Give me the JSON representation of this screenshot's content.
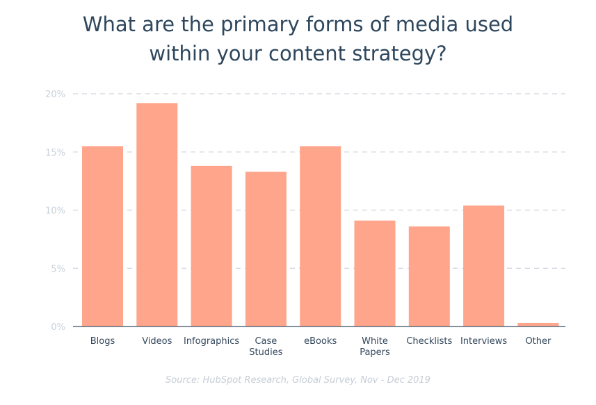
{
  "chart_data": {
    "type": "bar",
    "title_lines": [
      "What are the primary forms of media used",
      "within your content strategy?"
    ],
    "categories": [
      "Blogs",
      "Videos",
      "Infographics",
      "Case Studies",
      "eBooks",
      "White Papers",
      "Checklists",
      "Interviews",
      "Other"
    ],
    "category_lines": [
      [
        "Blogs"
      ],
      [
        "Videos"
      ],
      [
        "Infographics"
      ],
      [
        "Case",
        "Studies"
      ],
      [
        "eBooks"
      ],
      [
        "White",
        "Papers"
      ],
      [
        "Checklists"
      ],
      [
        "Interviews"
      ],
      [
        "Other"
      ]
    ],
    "values": [
      15.5,
      19.2,
      13.8,
      13.3,
      15.5,
      9.1,
      8.6,
      10.4,
      0.3
    ],
    "ylim": [
      0,
      20
    ],
    "yticks": [
      0,
      5,
      10,
      15,
      20
    ],
    "ytick_labels": [
      "0%",
      "5%",
      "10%",
      "15%",
      "20%"
    ],
    "xlabel": "",
    "ylabel": "",
    "grid": true,
    "bar_color": "#ffa58b",
    "gridline_color": "#d9dee4",
    "axis_color": "#5a6b7b",
    "tick_label_color": "#c9d2dc",
    "category_label_color": "#33475b"
  },
  "source": "Source: HubSpot Research, Global Survey, Nov - Dec 2019"
}
